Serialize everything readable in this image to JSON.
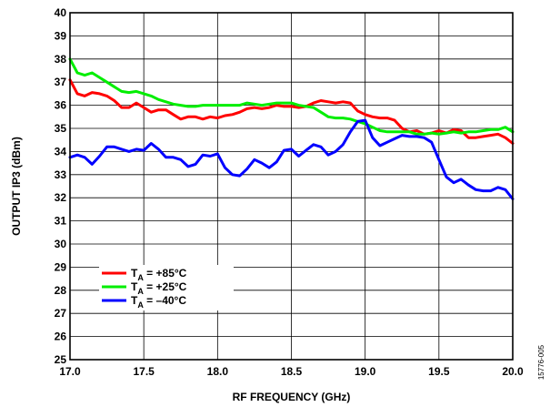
{
  "chart_data": {
    "type": "line",
    "title": "",
    "xlabel": "RF FREQUENCY (GHz)",
    "ylabel": "OUTPUT IP3 (dBm)",
    "xlim": [
      17.0,
      20.0
    ],
    "ylim": [
      25,
      40
    ],
    "x_ticks": [
      "17.0",
      "17.5",
      "18.0",
      "18.5",
      "19.0",
      "19.5",
      "20.0"
    ],
    "y_ticks": [
      "25",
      "26",
      "27",
      "28",
      "29",
      "30",
      "31",
      "32",
      "33",
      "34",
      "35",
      "36",
      "37",
      "38",
      "39",
      "40"
    ],
    "grid": true,
    "legend_position": "bottom-left",
    "figure_id": "15776-005",
    "series": [
      {
        "name": "+85°C",
        "legend_main": "T",
        "legend_sub": "A",
        "legend_rest": " = +85°C",
        "color": "#ff0000",
        "x": [
          17.0,
          17.05,
          17.1,
          17.15,
          17.2,
          17.25,
          17.3,
          17.35,
          17.4,
          17.45,
          17.5,
          17.55,
          17.6,
          17.65,
          17.7,
          17.75,
          17.8,
          17.85,
          17.9,
          17.95,
          18.0,
          18.05,
          18.1,
          18.15,
          18.2,
          18.25,
          18.3,
          18.35,
          18.4,
          18.45,
          18.5,
          18.55,
          18.6,
          18.65,
          18.7,
          18.75,
          18.8,
          18.85,
          18.9,
          18.95,
          19.0,
          19.05,
          19.1,
          19.15,
          19.2,
          19.25,
          19.3,
          19.35,
          19.4,
          19.45,
          19.5,
          19.55,
          19.6,
          19.65,
          19.7,
          19.75,
          19.8,
          19.85,
          19.9,
          19.95,
          20.0
        ],
        "values": [
          37.1,
          36.5,
          36.4,
          36.55,
          36.5,
          36.4,
          36.2,
          35.9,
          35.9,
          36.1,
          35.9,
          35.7,
          35.8,
          35.8,
          35.6,
          35.4,
          35.5,
          35.5,
          35.4,
          35.5,
          35.45,
          35.55,
          35.6,
          35.7,
          35.85,
          35.9,
          35.85,
          35.9,
          36.0,
          35.95,
          35.95,
          35.9,
          35.95,
          36.1,
          36.2,
          36.15,
          36.1,
          36.15,
          36.1,
          35.75,
          35.6,
          35.5,
          35.45,
          35.45,
          35.35,
          35.0,
          34.85,
          34.9,
          34.75,
          34.8,
          34.9,
          34.8,
          34.95,
          34.9,
          34.6,
          34.6,
          34.65,
          34.7,
          34.75,
          34.6,
          34.35
        ]
      },
      {
        "name": "+25°C",
        "legend_main": "T",
        "legend_sub": "A",
        "legend_rest": " = +25°C",
        "color": "#00ee00",
        "x": [
          17.0,
          17.05,
          17.1,
          17.15,
          17.2,
          17.25,
          17.3,
          17.35,
          17.4,
          17.45,
          17.5,
          17.55,
          17.6,
          17.65,
          17.7,
          17.75,
          17.8,
          17.85,
          17.9,
          17.95,
          18.0,
          18.05,
          18.1,
          18.15,
          18.2,
          18.25,
          18.3,
          18.35,
          18.4,
          18.45,
          18.5,
          18.55,
          18.6,
          18.65,
          18.7,
          18.75,
          18.8,
          18.85,
          18.9,
          18.95,
          19.0,
          19.05,
          19.1,
          19.15,
          19.2,
          19.25,
          19.3,
          19.35,
          19.4,
          19.45,
          19.5,
          19.55,
          19.6,
          19.65,
          19.7,
          19.75,
          19.8,
          19.85,
          19.9,
          19.95,
          20.0
        ],
        "values": [
          38.0,
          37.4,
          37.3,
          37.4,
          37.2,
          37.0,
          36.8,
          36.6,
          36.55,
          36.6,
          36.5,
          36.4,
          36.25,
          36.15,
          36.05,
          36.0,
          35.95,
          35.95,
          36.0,
          36.0,
          36.0,
          36.0,
          36.0,
          36.0,
          36.1,
          36.05,
          36.0,
          36.05,
          36.1,
          36.1,
          36.1,
          36.0,
          35.95,
          35.9,
          35.7,
          35.5,
          35.45,
          35.45,
          35.4,
          35.3,
          35.2,
          35.05,
          34.9,
          34.85,
          34.85,
          34.85,
          34.85,
          34.75,
          34.75,
          34.8,
          34.75,
          34.8,
          34.85,
          34.8,
          34.85,
          34.85,
          34.9,
          34.95,
          34.95,
          35.05,
          34.85
        ]
      },
      {
        "name": "–40°C",
        "legend_main": "T",
        "legend_sub": "A",
        "legend_rest": " = –40°C",
        "color": "#0000ff",
        "x": [
          17.0,
          17.05,
          17.1,
          17.15,
          17.2,
          17.25,
          17.3,
          17.35,
          17.4,
          17.45,
          17.5,
          17.55,
          17.6,
          17.65,
          17.7,
          17.75,
          17.8,
          17.85,
          17.9,
          17.95,
          18.0,
          18.05,
          18.1,
          18.15,
          18.2,
          18.25,
          18.3,
          18.35,
          18.4,
          18.45,
          18.5,
          18.55,
          18.6,
          18.65,
          18.7,
          18.75,
          18.8,
          18.85,
          18.9,
          18.95,
          19.0,
          19.05,
          19.1,
          19.15,
          19.2,
          19.25,
          19.3,
          19.35,
          19.4,
          19.45,
          19.5,
          19.55,
          19.6,
          19.65,
          19.7,
          19.75,
          19.8,
          19.85,
          19.9,
          19.95,
          20.0
        ],
        "values": [
          33.75,
          33.85,
          33.75,
          33.45,
          33.8,
          34.2,
          34.2,
          34.1,
          34.0,
          34.1,
          34.05,
          34.35,
          34.1,
          33.75,
          33.75,
          33.65,
          33.35,
          33.45,
          33.85,
          33.8,
          33.9,
          33.3,
          33.0,
          32.95,
          33.25,
          33.65,
          33.5,
          33.3,
          33.55,
          34.05,
          34.1,
          33.8,
          34.05,
          34.3,
          34.2,
          33.85,
          34.0,
          34.3,
          34.85,
          35.3,
          35.35,
          34.6,
          34.25,
          34.4,
          34.55,
          34.7,
          34.65,
          34.65,
          34.6,
          34.4,
          33.65,
          32.9,
          32.65,
          32.8,
          32.55,
          32.35,
          32.3,
          32.3,
          32.45,
          32.35,
          31.95
        ]
      }
    ]
  }
}
